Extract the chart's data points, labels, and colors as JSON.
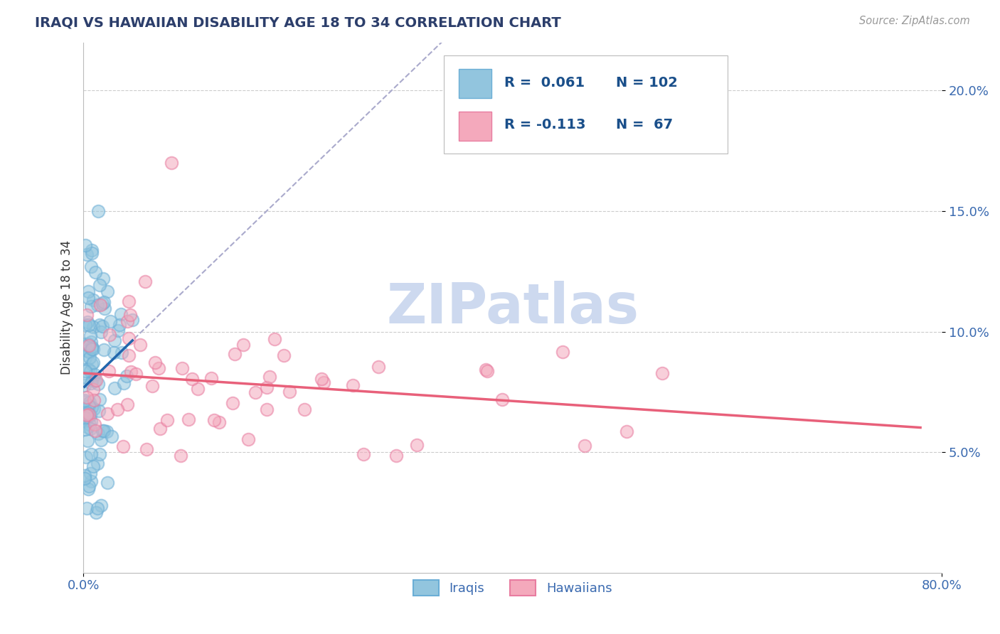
{
  "title": "IRAQI VS HAWAIIAN DISABILITY AGE 18 TO 34 CORRELATION CHART",
  "source_text": "Source: ZipAtlas.com",
  "ylabel": "Disability Age 18 to 34",
  "xlim": [
    0.0,
    0.8
  ],
  "ylim": [
    0.0,
    0.22
  ],
  "xtick_labels": [
    "0.0%",
    "80.0%"
  ],
  "ytick_labels": [
    "5.0%",
    "10.0%",
    "15.0%",
    "20.0%"
  ],
  "iraqi_color": "#92c5de",
  "iraqi_edge_color": "#6baed6",
  "hawaiian_color": "#f4a9bc",
  "hawaiian_edge_color": "#e87ca0",
  "iraqi_line_color": "#2166ac",
  "hawaiian_line_color": "#e8607a",
  "dashed_line_color": "#aaaacc",
  "background_color": "#ffffff",
  "grid_color": "#cccccc",
  "title_color": "#2c3e6b",
  "axis_label_color": "#3a6ab0",
  "watermark_text": "ZIPatlas",
  "watermark_color": "#cdd9ef",
  "legend_text_color": "#1a4f8a",
  "iraqi_R": 0.061,
  "iraqi_N": 102,
  "hawaiian_R": -0.113,
  "hawaiian_N": 67
}
